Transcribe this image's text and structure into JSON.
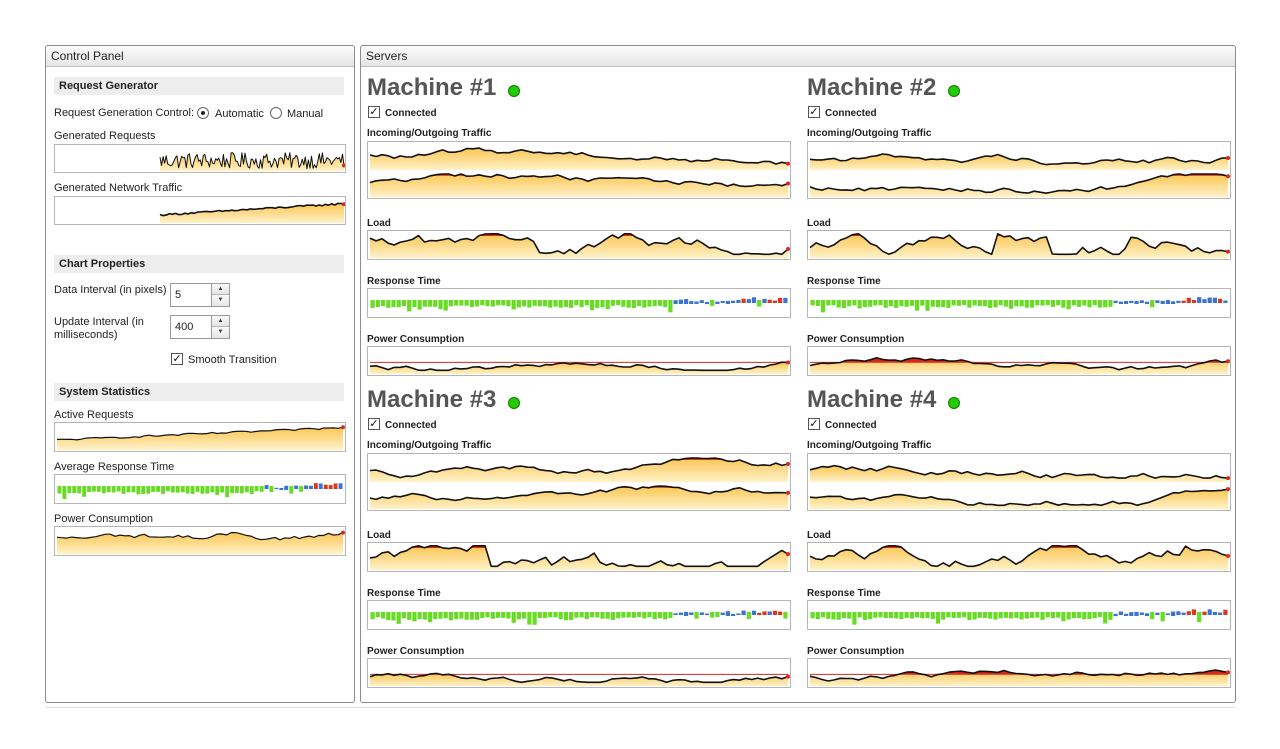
{
  "control_panel": {
    "title": "Control Panel",
    "request_generator": {
      "header": "Request Generator",
      "control_label": "Request Generation Control:",
      "option_automatic": "Automatic",
      "option_manual": "Manual",
      "selected": "Automatic",
      "generated_requests_label": "Generated Requests",
      "generated_traffic_label": "Generated Network Traffic"
    },
    "chart_properties": {
      "header": "Chart Properties",
      "data_interval_label": "Data Interval (in pixels)",
      "data_interval_value": "5",
      "update_interval_label_line1": "Update Interval (in",
      "update_interval_label_line2": "milliseconds)",
      "update_interval_value": "400",
      "smooth_transition_label": "Smooth Transition",
      "smooth_transition_checked": true
    },
    "system_statistics": {
      "header": "System Statistics",
      "active_requests_label": "Active Requests",
      "avg_response_label": "Average Response Time",
      "power_label": "Power Consumption"
    }
  },
  "servers": {
    "title": "Servers",
    "chart_labels": {
      "traffic": "Incoming/Outgoing Traffic",
      "load": "Load",
      "response": "Response Time",
      "power": "Power Consumption"
    },
    "connected_label": "Connected",
    "machines": [
      {
        "name": "Machine #1",
        "connected": true,
        "status_color": "#22cc00"
      },
      {
        "name": "Machine #2",
        "connected": true,
        "status_color": "#22cc00"
      },
      {
        "name": "Machine #3",
        "connected": true,
        "status_color": "#22cc00"
      },
      {
        "name": "Machine #4",
        "connected": true,
        "status_color": "#22cc00"
      }
    ]
  },
  "colors": {
    "area_fill": "#fbc552",
    "area_fill_light": "#fff2c9",
    "line": "#111111",
    "overflow": "#d8281c",
    "response_ok": "#66dd22",
    "response_mid": "#3a73d6",
    "response_high": "#d8381c",
    "panel_border": "#8c8c8c"
  }
}
